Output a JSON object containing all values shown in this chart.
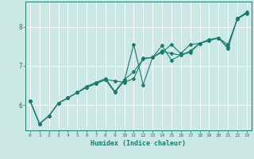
{
  "xlabel": "Humidex (Indice chaleur)",
  "bg_color": "#cce8e4",
  "line_color": "#1a7a6e",
  "grid_color": "#ffffff",
  "xlim": [
    -0.5,
    23.5
  ],
  "ylim": [
    5.35,
    8.65
  ],
  "yticks": [
    6,
    7,
    8
  ],
  "xticks": [
    0,
    1,
    2,
    3,
    4,
    5,
    6,
    7,
    8,
    9,
    10,
    11,
    12,
    13,
    14,
    15,
    16,
    17,
    18,
    19,
    20,
    21,
    22,
    23
  ],
  "line1_x": [
    0,
    1,
    2,
    3,
    4,
    5,
    6,
    7,
    8,
    9,
    10,
    11,
    12,
    13,
    14,
    15,
    16,
    17,
    18,
    19,
    20,
    21,
    22,
    23
  ],
  "line1_y": [
    6.1,
    5.52,
    5.72,
    6.05,
    6.18,
    6.32,
    6.45,
    6.55,
    6.65,
    6.62,
    6.58,
    6.68,
    7.2,
    7.22,
    7.35,
    7.55,
    7.32,
    7.55,
    7.58,
    7.65,
    7.72,
    7.55,
    8.2,
    8.35
  ],
  "line2_x": [
    0,
    1,
    2,
    3,
    4,
    5,
    6,
    7,
    8,
    9,
    10,
    11,
    12,
    13,
    14,
    15,
    16,
    17,
    18,
    19,
    20,
    21,
    22,
    23
  ],
  "line2_y": [
    6.1,
    5.52,
    5.72,
    6.05,
    6.18,
    6.32,
    6.45,
    6.55,
    6.65,
    6.32,
    6.62,
    7.55,
    6.52,
    7.22,
    7.52,
    7.15,
    7.28,
    7.35,
    7.58,
    7.65,
    7.72,
    7.45,
    8.22,
    8.35
  ],
  "line3_x": [
    0,
    1,
    2,
    3,
    4,
    5,
    6,
    7,
    8,
    9,
    10,
    11,
    12,
    13,
    14,
    15,
    16,
    17,
    18,
    19,
    20,
    21,
    22,
    23
  ],
  "line3_y": [
    6.1,
    5.52,
    5.72,
    6.05,
    6.18,
    6.32,
    6.48,
    6.58,
    6.68,
    6.35,
    6.65,
    6.85,
    7.18,
    7.22,
    7.38,
    7.32,
    7.28,
    7.38,
    7.58,
    7.68,
    7.72,
    7.48,
    8.22,
    8.38
  ],
  "marker": "D",
  "marker_size": 2.0,
  "linewidth": 0.8
}
